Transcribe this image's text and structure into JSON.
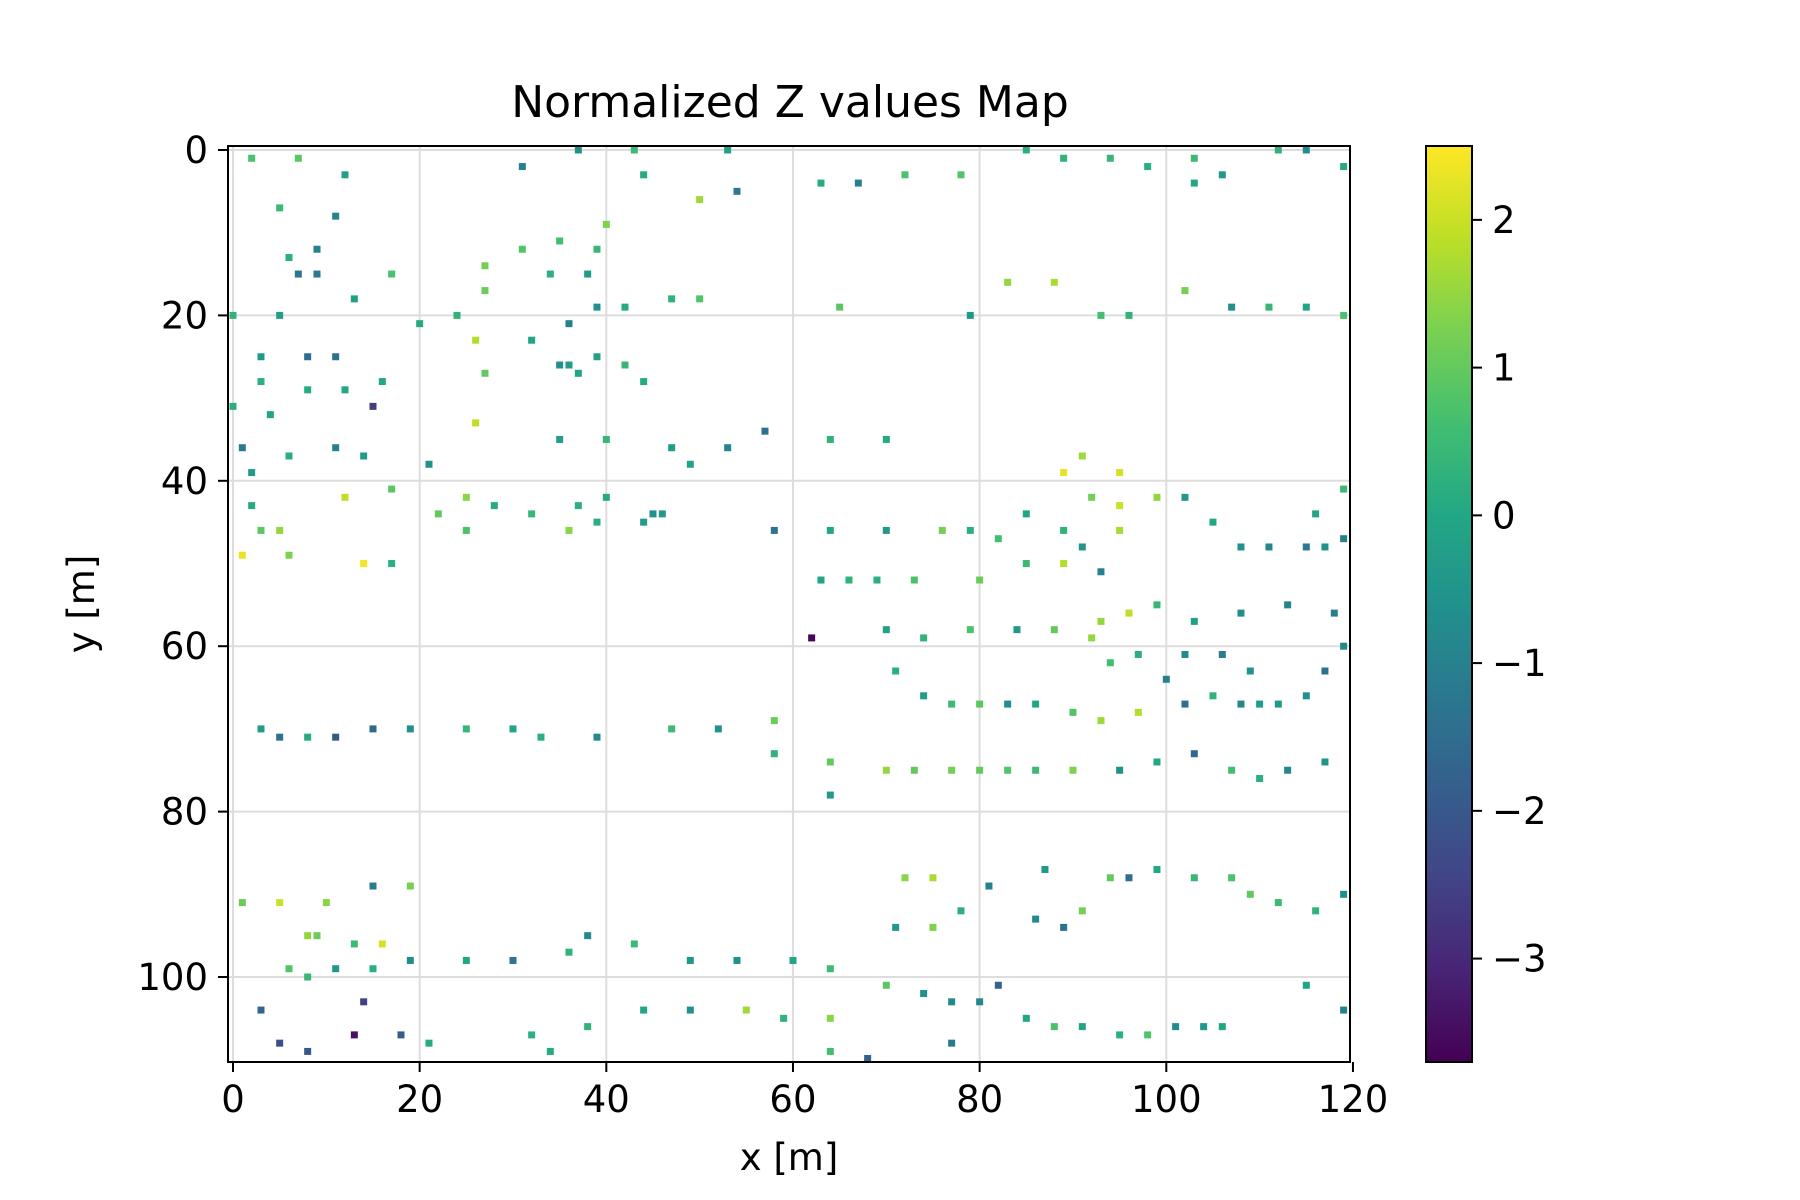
{
  "chart_data": {
    "type": "heatmap",
    "title": "Normalized Z values Map",
    "xlabel": "x [m]",
    "ylabel": "y [m]",
    "x_range": [
      0,
      120
    ],
    "y_range": [
      0,
      110
    ],
    "y_axis_inverted": true,
    "x_ticks": [
      "0",
      "20",
      "40",
      "60",
      "80",
      "100",
      "120"
    ],
    "y_ticks": [
      "0",
      "20",
      "40",
      "60",
      "80",
      "100"
    ],
    "grid": true,
    "colormap": "viridis",
    "colorbar": {
      "range": [
        -3.7,
        2.5
      ],
      "ticks": [
        "2",
        "1",
        "0",
        "−1",
        "−2",
        "−3"
      ]
    },
    "points": [
      [
        2,
        1,
        0.7
      ],
      [
        7,
        1,
        0.9
      ],
      [
        12,
        3,
        -0.2
      ],
      [
        5,
        7,
        0.5
      ],
      [
        11,
        8,
        -0.9
      ],
      [
        6,
        13,
        0.2
      ],
      [
        9,
        12,
        -1.0
      ],
      [
        7,
        15,
        -1.3
      ],
      [
        9,
        15,
        -1.2
      ],
      [
        13,
        18,
        -0.2
      ],
      [
        17,
        15,
        0.7
      ],
      [
        27,
        14,
        1.2
      ],
      [
        27,
        17,
        1.1
      ],
      [
        31,
        12,
        0.8
      ],
      [
        35,
        11,
        0.6
      ],
      [
        34,
        15,
        0.2
      ],
      [
        40,
        9,
        1.3
      ],
      [
        39,
        12,
        0.4
      ],
      [
        38,
        15,
        -0.3
      ],
      [
        31,
        2,
        -1.0
      ],
      [
        37,
        0,
        -0.6
      ],
      [
        43,
        0,
        0.5
      ],
      [
        44,
        3,
        0.1
      ],
      [
        50,
        6,
        1.6
      ],
      [
        54,
        5,
        -1.2
      ],
      [
        53,
        0,
        -0.2
      ],
      [
        63,
        4,
        0.1
      ],
      [
        67,
        4,
        -1.0
      ],
      [
        72,
        3,
        0.7
      ],
      [
        78,
        3,
        0.8
      ],
      [
        85,
        0,
        0.2
      ],
      [
        89,
        1,
        0.3
      ],
      [
        94,
        1,
        0.4
      ],
      [
        98,
        2,
        0.2
      ],
      [
        103,
        1,
        0.5
      ],
      [
        106,
        3,
        -0.4
      ],
      [
        112,
        0,
        0.3
      ],
      [
        115,
        0,
        -0.7
      ],
      [
        119,
        2,
        0.1
      ],
      [
        103,
        4,
        0.0
      ],
      [
        0,
        20,
        0.3
      ],
      [
        5,
        20,
        -0.2
      ],
      [
        3,
        25,
        -0.4
      ],
      [
        8,
        25,
        -1.5
      ],
      [
        11,
        25,
        -1.4
      ],
      [
        3,
        28,
        0.2
      ],
      [
        8,
        29,
        0.1
      ],
      [
        12,
        29,
        0.0
      ],
      [
        16,
        28,
        0.0
      ],
      [
        15,
        31,
        -2.6
      ],
      [
        20,
        21,
        0.1
      ],
      [
        24,
        20,
        0.3
      ],
      [
        26,
        23,
        1.8
      ],
      [
        27,
        27,
        1.0
      ],
      [
        32,
        23,
        -0.1
      ],
      [
        36,
        21,
        -1.0
      ],
      [
        39,
        19,
        -0.6
      ],
      [
        42,
        19,
        0.1
      ],
      [
        47,
        18,
        0.3
      ],
      [
        50,
        18,
        0.8
      ],
      [
        35,
        26,
        -0.6
      ],
      [
        36,
        26,
        -0.3
      ],
      [
        37,
        27,
        -0.1
      ],
      [
        39,
        25,
        -0.2
      ],
      [
        42,
        26,
        0.4
      ],
      [
        44,
        28,
        0.1
      ],
      [
        65,
        19,
        0.9
      ],
      [
        79,
        20,
        -0.4
      ],
      [
        83,
        16,
        1.5
      ],
      [
        88,
        16,
        1.7
      ],
      [
        93,
        20,
        0.6
      ],
      [
        96,
        20,
        0.3
      ],
      [
        102,
        17,
        1.2
      ],
      [
        107,
        19,
        -0.6
      ],
      [
        111,
        19,
        0.4
      ],
      [
        115,
        19,
        -0.1
      ],
      [
        119,
        20,
        0.7
      ],
      [
        0,
        31,
        0.2
      ],
      [
        4,
        32,
        -0.1
      ],
      [
        1,
        36,
        -1.2
      ],
      [
        6,
        37,
        0.2
      ],
      [
        11,
        36,
        -1.0
      ],
      [
        14,
        37,
        -0.3
      ],
      [
        17,
        41,
        0.9
      ],
      [
        21,
        38,
        -0.6
      ],
      [
        25,
        42,
        1.4
      ],
      [
        28,
        43,
        0.1
      ],
      [
        32,
        44,
        0.4
      ],
      [
        37,
        43,
        0.2
      ],
      [
        40,
        42,
        0.1
      ],
      [
        2,
        39,
        -0.3
      ],
      [
        2,
        43,
        0.1
      ],
      [
        3,
        46,
        0.9
      ],
      [
        5,
        46,
        1.5
      ],
      [
        6,
        49,
        1.3
      ],
      [
        1,
        49,
        2.3
      ],
      [
        12,
        42,
        1.9
      ],
      [
        14,
        50,
        2.4
      ],
      [
        17,
        50,
        0.2
      ],
      [
        22,
        44,
        1.0
      ],
      [
        25,
        46,
        0.7
      ],
      [
        36,
        46,
        1.4
      ],
      [
        39,
        45,
        0.2
      ],
      [
        44,
        45,
        -0.3
      ],
      [
        45,
        44,
        -0.6
      ],
      [
        46,
        44,
        -0.4
      ],
      [
        26,
        33,
        1.9
      ],
      [
        35,
        35,
        -0.2
      ],
      [
        40,
        35,
        0.4
      ],
      [
        47,
        36,
        -0.3
      ],
      [
        49,
        38,
        -0.1
      ],
      [
        53,
        36,
        -0.9
      ],
      [
        57,
        34,
        -1.4
      ],
      [
        64,
        35,
        0.3
      ],
      [
        70,
        35,
        0.1
      ],
      [
        58,
        46,
        -1.3
      ],
      [
        64,
        46,
        0.0
      ],
      [
        70,
        46,
        -0.4
      ],
      [
        76,
        46,
        1.2
      ],
      [
        79,
        46,
        0.2
      ],
      [
        82,
        47,
        0.6
      ],
      [
        85,
        44,
        -0.1
      ],
      [
        89,
        46,
        0.3
      ],
      [
        91,
        48,
        -0.5
      ],
      [
        95,
        46,
        1.7
      ],
      [
        95,
        43,
        2.0
      ],
      [
        95,
        39,
        2.1
      ],
      [
        91,
        37,
        1.6
      ],
      [
        89,
        39,
        2.3
      ],
      [
        92,
        42,
        1.2
      ],
      [
        99,
        42,
        1.5
      ],
      [
        102,
        42,
        -0.4
      ],
      [
        105,
        45,
        0.0
      ],
      [
        108,
        48,
        -0.6
      ],
      [
        111,
        48,
        -0.8
      ],
      [
        115,
        48,
        -1.2
      ],
      [
        117,
        48,
        -0.6
      ],
      [
        119,
        47,
        -1.0
      ],
      [
        116,
        44,
        -0.1
      ],
      [
        119,
        41,
        0.5
      ],
      [
        62,
        59,
        -3.6
      ],
      [
        63,
        52,
        -0.1
      ],
      [
        66,
        52,
        0.3
      ],
      [
        69,
        52,
        0.2
      ],
      [
        73,
        52,
        0.7
      ],
      [
        80,
        52,
        1.1
      ],
      [
        85,
        50,
        0.5
      ],
      [
        89,
        50,
        1.8
      ],
      [
        93,
        51,
        -1.0
      ],
      [
        96,
        56,
        1.9
      ],
      [
        93,
        57,
        1.5
      ],
      [
        99,
        55,
        0.4
      ],
      [
        103,
        57,
        -0.2
      ],
      [
        108,
        56,
        -0.7
      ],
      [
        113,
        55,
        -0.9
      ],
      [
        118,
        56,
        -1.1
      ],
      [
        119,
        60,
        -0.8
      ],
      [
        117,
        63,
        -1.4
      ],
      [
        115,
        66,
        -0.6
      ],
      [
        112,
        67,
        -0.4
      ],
      [
        110,
        67,
        -0.3
      ],
      [
        108,
        67,
        -0.9
      ],
      [
        105,
        66,
        0.3
      ],
      [
        102,
        67,
        -1.4
      ],
      [
        100,
        64,
        -1.0
      ],
      [
        97,
        68,
        1.8
      ],
      [
        93,
        69,
        1.6
      ],
      [
        90,
        68,
        0.8
      ],
      [
        86,
        67,
        0.0
      ],
      [
        83,
        67,
        -0.7
      ],
      [
        80,
        67,
        0.9
      ],
      [
        77,
        67,
        0.5
      ],
      [
        74,
        66,
        -0.3
      ],
      [
        71,
        63,
        0.2
      ],
      [
        70,
        58,
        -0.2
      ],
      [
        74,
        59,
        0.3
      ],
      [
        79,
        58,
        0.7
      ],
      [
        84,
        58,
        -0.4
      ],
      [
        88,
        58,
        1.0
      ],
      [
        92,
        59,
        1.5
      ],
      [
        94,
        62,
        0.6
      ],
      [
        97,
        61,
        0.2
      ],
      [
        102,
        61,
        -0.8
      ],
      [
        106,
        61,
        -1.1
      ],
      [
        109,
        63,
        -0.5
      ],
      [
        47,
        70,
        0.5
      ],
      [
        52,
        70,
        -0.6
      ],
      [
        58,
        69,
        1.1
      ],
      [
        58,
        73,
        0.3
      ],
      [
        64,
        74,
        1.0
      ],
      [
        64,
        78,
        -0.4
      ],
      [
        70,
        75,
        1.5
      ],
      [
        73,
        75,
        1.0
      ],
      [
        77,
        75,
        1.2
      ],
      [
        80,
        75,
        1.0
      ],
      [
        83,
        75,
        0.8
      ],
      [
        86,
        75,
        0.5
      ],
      [
        90,
        75,
        1.3
      ],
      [
        95,
        75,
        -0.6
      ],
      [
        99,
        74,
        0.0
      ],
      [
        103,
        73,
        -1.6
      ],
      [
        107,
        75,
        0.6
      ],
      [
        110,
        76,
        0.2
      ],
      [
        113,
        75,
        -0.8
      ],
      [
        117,
        74,
        -0.5
      ],
      [
        3,
        70,
        -0.3
      ],
      [
        5,
        71,
        -1.3
      ],
      [
        8,
        71,
        0.1
      ],
      [
        11,
        71,
        -2.0
      ],
      [
        15,
        70,
        -1.6
      ],
      [
        19,
        70,
        -0.6
      ],
      [
        25,
        70,
        0.4
      ],
      [
        30,
        70,
        -0.1
      ],
      [
        33,
        71,
        0.2
      ],
      [
        39,
        71,
        -0.8
      ],
      [
        1,
        91,
        1.1
      ],
      [
        5,
        91,
        2.0
      ],
      [
        10,
        91,
        1.4
      ],
      [
        15,
        89,
        -1.1
      ],
      [
        19,
        89,
        1.2
      ],
      [
        13,
        96,
        0.5
      ],
      [
        16,
        96,
        2.1
      ],
      [
        8,
        95,
        1.5
      ],
      [
        9,
        95,
        1.1
      ],
      [
        6,
        99,
        0.8
      ],
      [
        8,
        100,
        0.4
      ],
      [
        11,
        99,
        -0.4
      ],
      [
        15,
        99,
        0.2
      ],
      [
        19,
        98,
        -0.7
      ],
      [
        25,
        98,
        0.0
      ],
      [
        30,
        98,
        -1.3
      ],
      [
        36,
        97,
        0.3
      ],
      [
        38,
        95,
        -0.8
      ],
      [
        43,
        96,
        0.5
      ],
      [
        49,
        98,
        -0.4
      ],
      [
        54,
        98,
        -0.6
      ],
      [
        60,
        98,
        -0.1
      ],
      [
        64,
        99,
        0.5
      ],
      [
        70,
        101,
        0.9
      ],
      [
        74,
        102,
        -0.6
      ],
      [
        77,
        103,
        -0.8
      ],
      [
        80,
        103,
        -0.9
      ],
      [
        82,
        101,
        -1.8
      ],
      [
        85,
        105,
        0.0
      ],
      [
        88,
        106,
        0.7
      ],
      [
        91,
        106,
        -0.1
      ],
      [
        95,
        107,
        0.2
      ],
      [
        98,
        107,
        0.8
      ],
      [
        101,
        106,
        -0.7
      ],
      [
        104,
        106,
        -0.4
      ],
      [
        106,
        106,
        0.0
      ],
      [
        115,
        101,
        -0.1
      ],
      [
        119,
        104,
        -0.9
      ],
      [
        14,
        103,
        -2.5
      ],
      [
        13,
        107,
        -3.4
      ],
      [
        8,
        109,
        -2.0
      ],
      [
        5,
        108,
        -2.2
      ],
      [
        3,
        104,
        -1.7
      ],
      [
        18,
        107,
        -1.9
      ],
      [
        21,
        108,
        0.1
      ],
      [
        32,
        107,
        0.2
      ],
      [
        34,
        109,
        0.1
      ],
      [
        38,
        106,
        0.3
      ],
      [
        44,
        104,
        -0.1
      ],
      [
        49,
        104,
        -0.6
      ],
      [
        55,
        104,
        1.6
      ],
      [
        59,
        105,
        0.3
      ],
      [
        64,
        105,
        1.4
      ],
      [
        64,
        109,
        0.6
      ],
      [
        68,
        110,
        -1.8
      ],
      [
        77,
        108,
        -1.2
      ],
      [
        87,
        87,
        -0.4
      ],
      [
        91,
        92,
        1.2
      ],
      [
        94,
        88,
        1.0
      ],
      [
        96,
        88,
        -1.5
      ],
      [
        99,
        87,
        0.0
      ],
      [
        103,
        88,
        0.4
      ],
      [
        107,
        88,
        0.7
      ],
      [
        109,
        90,
        1.0
      ],
      [
        112,
        91,
        0.5
      ],
      [
        116,
        92,
        0.3
      ],
      [
        119,
        90,
        -0.7
      ],
      [
        72,
        88,
        1.4
      ],
      [
        75,
        88,
        1.7
      ],
      [
        75,
        94,
        1.3
      ],
      [
        71,
        94,
        -0.4
      ],
      [
        78,
        92,
        0.2
      ],
      [
        81,
        89,
        -1.0
      ],
      [
        86,
        93,
        -0.8
      ],
      [
        89,
        94,
        -1.4
      ]
    ]
  }
}
